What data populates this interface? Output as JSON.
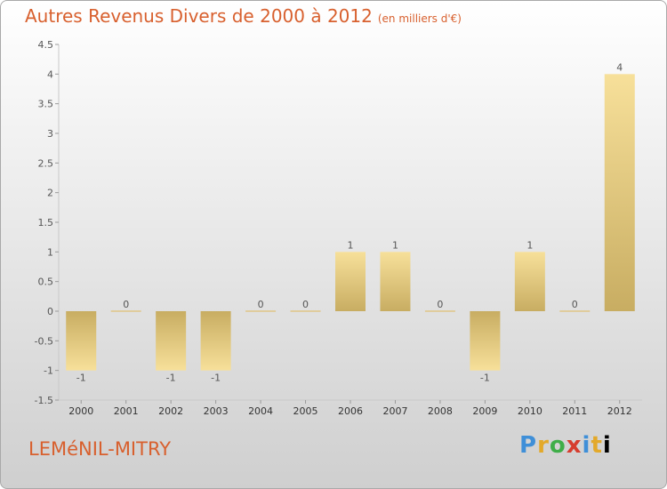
{
  "header": {
    "title": "Autres Revenus Divers de 2000 à 2012",
    "unit": "(en milliers d'€)"
  },
  "footer": {
    "commune": "LEMéNIL-MITRY",
    "brand_letters": [
      "P",
      "r",
      "o",
      "x",
      "i",
      "t",
      "i"
    ]
  },
  "colors": {
    "title": "#d8602e",
    "bar_light": "#f7e09a",
    "bar_dark": "#c8ad62",
    "baseline": "#e0b75a"
  },
  "chart_data": {
    "type": "bar",
    "title": "Autres Revenus Divers de 2000 à 2012",
    "xlabel": "",
    "ylabel": "",
    "categories": [
      "2000",
      "2001",
      "2002",
      "2003",
      "2004",
      "2005",
      "2006",
      "2007",
      "2008",
      "2009",
      "2010",
      "2011",
      "2012"
    ],
    "values": [
      -1,
      0,
      -1,
      -1,
      0,
      0,
      1,
      1,
      0,
      -1,
      1,
      0,
      4
    ],
    "value_labels": [
      "-1",
      "0",
      "-1",
      "-1",
      "0",
      "0",
      "1",
      "1",
      "0",
      "-1",
      "1",
      "0",
      "4"
    ],
    "ylim": [
      -1.5,
      4.5
    ],
    "yticks": [
      -1.5,
      -1,
      -0.5,
      0,
      0.5,
      1,
      1.5,
      2,
      2.5,
      3,
      3.5,
      4,
      4.5
    ],
    "ytick_labels": [
      "-1.5",
      "-1",
      "-0.5",
      "0",
      "0.5",
      "1",
      "1.5",
      "2",
      "2.5",
      "3",
      "3.5",
      "4",
      "4.5"
    ],
    "grid": false,
    "legend": "none"
  }
}
